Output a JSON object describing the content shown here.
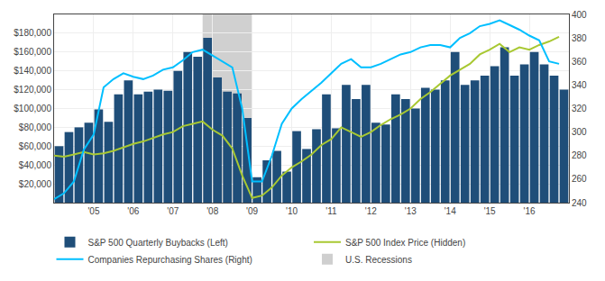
{
  "chart_data": {
    "type": "bar",
    "series": [
      {
        "name": "S&P 500 Quarterly Buybacks (Left)",
        "type": "bar",
        "color": "#1f4e79",
        "axis": "y",
        "x": [
          2004.125,
          2004.375,
          2004.625,
          2004.875,
          2005.125,
          2005.375,
          2005.625,
          2005.875,
          2006.125,
          2006.375,
          2006.625,
          2006.875,
          2007.125,
          2007.375,
          2007.625,
          2007.875,
          2008.125,
          2008.375,
          2008.625,
          2008.875,
          2009.125,
          2009.375,
          2009.625,
          2009.875,
          2010.125,
          2010.375,
          2010.625,
          2010.875,
          2011.125,
          2011.375,
          2011.625,
          2011.875,
          2012.125,
          2012.375,
          2012.625,
          2012.875,
          2013.125,
          2013.375,
          2013.625,
          2013.875,
          2014.125,
          2014.375,
          2014.625,
          2014.875,
          2015.125,
          2015.375,
          2015.625,
          2015.875,
          2016.125,
          2016.375,
          2016.625,
          2016.875
        ],
        "values": [
          60000,
          75000,
          80000,
          85000,
          99000,
          86000,
          115000,
          130000,
          115000,
          118000,
          120000,
          119000,
          140000,
          160000,
          155000,
          175000,
          133000,
          118000,
          116000,
          90000,
          27000,
          45000,
          55000,
          33000,
          76000,
          57000,
          78000,
          115000,
          79000,
          125000,
          110000,
          125000,
          85000,
          83000,
          115000,
          110000,
          100000,
          122000,
          120000,
          130000,
          160000,
          125000,
          130000,
          135000,
          145000,
          165000,
          135000,
          147000,
          160000,
          147000,
          135000,
          120000
        ]
      },
      {
        "name": "S&P 500 Index Price (Hidden)",
        "type": "line",
        "color": "#a8c832",
        "axis": "y2",
        "x": [
          2004.0,
          2004.25,
          2004.5,
          2004.75,
          2005.0,
          2005.25,
          2005.5,
          2005.75,
          2006.0,
          2006.25,
          2006.5,
          2006.75,
          2007.0,
          2007.25,
          2007.5,
          2007.75,
          2008.0,
          2008.25,
          2008.5,
          2008.75,
          2009.0,
          2009.25,
          2009.5,
          2009.75,
          2010.0,
          2010.25,
          2010.5,
          2010.75,
          2011.0,
          2011.25,
          2011.5,
          2011.75,
          2012.0,
          2012.25,
          2012.5,
          2012.75,
          2013.0,
          2013.25,
          2013.5,
          2013.75,
          2014.0,
          2014.25,
          2014.5,
          2014.75,
          2015.0,
          2015.25,
          2015.5,
          2015.75,
          2016.0,
          2016.25,
          2016.5,
          2016.75
        ],
        "values": [
          280,
          279,
          281,
          283,
          281,
          282,
          284,
          287,
          290,
          292,
          295,
          298,
          300,
          305,
          307,
          309,
          302,
          297,
          286,
          263,
          244,
          246,
          253,
          263,
          270,
          275,
          281,
          289,
          294,
          304,
          300,
          296,
          300,
          306,
          311,
          315,
          320,
          328,
          334,
          341,
          348,
          353,
          358,
          366,
          370,
          375,
          368,
          372,
          370,
          374,
          377,
          381
        ]
      },
      {
        "name": "Companies Repurchasing Shares (Right)",
        "type": "line",
        "color": "#00bfff",
        "axis": "y2",
        "x": [
          2004.0,
          2004.25,
          2004.5,
          2004.75,
          2005.0,
          2005.25,
          2005.5,
          2005.75,
          2006.0,
          2006.25,
          2006.5,
          2006.75,
          2007.0,
          2007.25,
          2007.5,
          2007.75,
          2008.0,
          2008.25,
          2008.5,
          2008.75,
          2009.0,
          2009.25,
          2009.5,
          2009.75,
          2010.0,
          2010.25,
          2010.5,
          2010.75,
          2011.0,
          2011.25,
          2011.5,
          2011.75,
          2012.0,
          2012.25,
          2012.5,
          2012.75,
          2013.0,
          2013.25,
          2013.5,
          2013.75,
          2014.0,
          2014.25,
          2014.5,
          2014.75,
          2015.0,
          2015.25,
          2015.5,
          2015.75,
          2016.0,
          2016.25,
          2016.5,
          2016.75
        ],
        "values": [
          243,
          248,
          258,
          285,
          298,
          338,
          345,
          350,
          347,
          345,
          348,
          353,
          355,
          361,
          368,
          370,
          365,
          360,
          355,
          320,
          258,
          258,
          280,
          307,
          320,
          328,
          335,
          342,
          350,
          358,
          362,
          355,
          355,
          358,
          362,
          366,
          368,
          372,
          374,
          374,
          372,
          380,
          384,
          390,
          392,
          395,
          391,
          387,
          382,
          378,
          360,
          358
        ]
      }
    ],
    "recession": {
      "name": "U.S. Recessions",
      "start": 2007.75,
      "end": 2009.0,
      "color": "#b0b0b0"
    },
    "xlim": [
      2004.0,
      2017.0
    ],
    "xticks": [
      {
        "value": 2005.0,
        "label": "'05"
      },
      {
        "value": 2006.0,
        "label": "'06"
      },
      {
        "value": 2007.0,
        "label": "'07"
      },
      {
        "value": 2008.0,
        "label": "'08"
      },
      {
        "value": 2009.0,
        "label": "'09"
      },
      {
        "value": 2010.0,
        "label": "'10"
      },
      {
        "value": 2011.0,
        "label": "'11"
      },
      {
        "value": 2012.0,
        "label": "'12"
      },
      {
        "value": 2013.0,
        "label": "'13"
      },
      {
        "value": 2014.0,
        "label": "'14"
      },
      {
        "value": 2015.0,
        "label": "'15"
      },
      {
        "value": 2016.0,
        "label": "'16"
      }
    ],
    "ylim": [
      0,
      200000
    ],
    "yticks": [
      {
        "value": 20000,
        "label": "$20,000"
      },
      {
        "value": 40000,
        "label": "$40,000"
      },
      {
        "value": 60000,
        "label": "$60,000"
      },
      {
        "value": 80000,
        "label": "$80,000"
      },
      {
        "value": 100000,
        "label": "$100,000"
      },
      {
        "value": 120000,
        "label": "$120,000"
      },
      {
        "value": 140000,
        "label": "$140,000"
      },
      {
        "value": 160000,
        "label": "$160,000"
      },
      {
        "value": 180000,
        "label": "$180,000"
      }
    ],
    "y2lim": [
      240,
      400
    ],
    "y2ticks": [
      240,
      260,
      280,
      300,
      320,
      340,
      360,
      380,
      400
    ],
    "grid": true,
    "legend": "bottom"
  }
}
